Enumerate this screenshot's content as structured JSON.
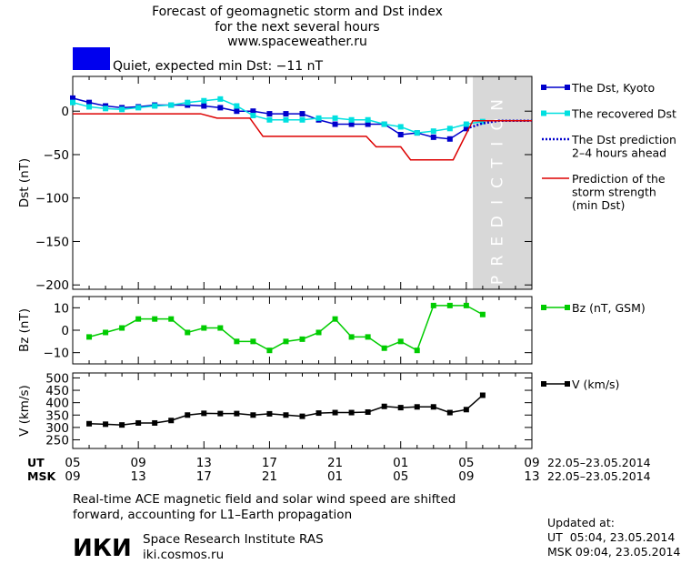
{
  "header": {
    "title_line1": "Forecast of geomagnetic storm and Dst index",
    "title_line2": "for the next several hours",
    "website": "www.spaceweather.ru",
    "status_color": "#0000ee",
    "status_text": "Quiet, expected min Dst: −11 nT"
  },
  "chart_data": [
    {
      "type": "line",
      "ylabel": "Dst (nT)",
      "ylim": [
        -205,
        40
      ],
      "yticks": [
        {
          "v": 0,
          "label": "0"
        },
        {
          "v": -50,
          "label": "−50"
        },
        {
          "v": -100,
          "label": "−100"
        },
        {
          "v": -150,
          "label": "−150"
        },
        {
          "v": -200,
          "label": "−200"
        }
      ],
      "xlim": [
        0,
        28
      ],
      "prediction_band": {
        "x0": 24.4,
        "x1": 28,
        "label": "PREDICTION",
        "color": "#d8d8d8"
      },
      "series": [
        {
          "name": "The Dst, Kyoto",
          "color": "#0000cc",
          "style": "marker-square",
          "x": [
            0,
            1,
            2,
            3,
            4,
            5,
            6,
            7,
            8,
            9,
            10,
            11,
            12,
            13,
            14,
            15,
            16,
            17,
            18,
            19,
            20,
            21,
            22,
            23,
            24
          ],
          "y": [
            15,
            10,
            6,
            4,
            5,
            7,
            7,
            7,
            6,
            4,
            0,
            0,
            -3,
            -3,
            -3,
            -10,
            -15,
            -15,
            -15,
            -15,
            -27,
            -25,
            -30,
            -32,
            -20
          ]
        },
        {
          "name": "The recovered Dst",
          "color": "#00e0e0",
          "style": "marker-square",
          "x": [
            0,
            1,
            2,
            3,
            4,
            5,
            6,
            7,
            8,
            9,
            10,
            11,
            12,
            13,
            14,
            15,
            16,
            17,
            18,
            19,
            20,
            21,
            22,
            23,
            24,
            25
          ],
          "y": [
            10,
            5,
            3,
            2,
            4,
            6,
            7,
            10,
            12,
            14,
            6,
            -5,
            -10,
            -10,
            -10,
            -8,
            -8,
            -10,
            -10,
            -15,
            -18,
            -25,
            -23,
            -20,
            -15,
            -12
          ]
        },
        {
          "name": "The Dst prediction 2–4 hours ahead",
          "color": "#0000cc",
          "style": "dotted",
          "x": [
            24,
            25,
            26,
            28
          ],
          "y": [
            -20,
            -14,
            -11,
            -11
          ]
        },
        {
          "name": "Prediction of the storm strength (min Dst)",
          "color": "#dd0000",
          "style": "step",
          "x": [
            0,
            7.8,
            8.8,
            10.8,
            11.6,
            14.4,
            15.2,
            17.9,
            18.5,
            20,
            20.6,
            23.2,
            24.4,
            28
          ],
          "y": [
            -3,
            -3,
            -8,
            -8,
            -29,
            -29,
            -29,
            -29,
            -41,
            -41,
            -56,
            -56,
            -11,
            -11
          ]
        }
      ],
      "legend": [
        {
          "label_lines": [
            "The Dst, Kyoto"
          ],
          "color": "#0000cc",
          "kind": "marker-line"
        },
        {
          "label_lines": [
            "The recovered Dst"
          ],
          "color": "#00e0e0",
          "kind": "marker-line"
        },
        {
          "label_lines": [
            "The Dst prediction",
            "2–4 hours ahead"
          ],
          "color": "#0000cc",
          "kind": "dotted"
        },
        {
          "label_lines": [
            "Prediction of the",
            "storm strength",
            "(min Dst)"
          ],
          "color": "#dd0000",
          "kind": "line"
        }
      ]
    },
    {
      "type": "line",
      "ylabel": "Bz (nT)",
      "ylim": [
        -15,
        15
      ],
      "yticks": [
        {
          "v": 10,
          "label": "10"
        },
        {
          "v": 0,
          "label": "0"
        },
        {
          "v": -10,
          "label": "−10"
        }
      ],
      "xlim": [
        0,
        28
      ],
      "series": [
        {
          "name": "Bz (nT, GSM)",
          "color": "#00cc00",
          "style": "marker-square",
          "x": [
            1,
            2,
            3,
            4,
            5,
            6,
            7,
            8,
            9,
            10,
            11,
            12,
            13,
            14,
            15,
            16,
            17,
            18,
            19,
            20,
            21,
            22,
            23,
            24,
            25
          ],
          "y": [
            -3,
            -1,
            1,
            5,
            5,
            5,
            -1,
            1,
            1,
            -5,
            -5,
            -9,
            -5,
            -4,
            -1,
            5,
            -3,
            -3,
            -8,
            -5,
            -9,
            11,
            11,
            11,
            7
          ]
        }
      ],
      "legend": [
        {
          "label_lines": [
            "Bz (nT, GSM)"
          ],
          "color": "#00cc00",
          "kind": "marker-line"
        }
      ]
    },
    {
      "type": "line",
      "ylabel": "V (km/s)",
      "ylim": [
        215,
        520
      ],
      "yticks": [
        {
          "v": 500,
          "label": "500"
        },
        {
          "v": 450,
          "label": "450"
        },
        {
          "v": 400,
          "label": "400"
        },
        {
          "v": 350,
          "label": "350"
        },
        {
          "v": 300,
          "label": "300"
        },
        {
          "v": 250,
          "label": "250"
        }
      ],
      "xlim": [
        0,
        28
      ],
      "series": [
        {
          "name": "V (km/s)",
          "color": "#000000",
          "style": "marker-square",
          "x": [
            1,
            2,
            3,
            4,
            5,
            6,
            7,
            8,
            9,
            10,
            11,
            12,
            13,
            14,
            15,
            16,
            17,
            18,
            19,
            20,
            21,
            22,
            23,
            24,
            25
          ],
          "y": [
            315,
            313,
            310,
            318,
            318,
            328,
            350,
            357,
            356,
            356,
            350,
            355,
            350,
            345,
            358,
            360,
            360,
            362,
            385,
            380,
            383,
            383,
            360,
            372,
            430
          ]
        }
      ],
      "legend": [
        {
          "label_lines": [
            "V (km/s)"
          ],
          "color": "#000000",
          "kind": "marker-line"
        }
      ]
    }
  ],
  "time_axis": {
    "ut_label": "UT",
    "msk_label": "MSK",
    "ut_ticks": [
      "05",
      "09",
      "13",
      "17",
      "21",
      "01",
      "05",
      "09"
    ],
    "msk_ticks": [
      "09",
      "13",
      "17",
      "21",
      "01",
      "05",
      "09",
      "13"
    ],
    "ut_date_range": "22.05–23.05.2014",
    "msk_date_range": "22.05–23.05.2014"
  },
  "footer": {
    "note_line1": "Real-time ACE magnetic field and solar wind speed are shifted",
    "note_line2": "forward, accounting for L1–Earth propagation",
    "logo_text": "ИКИ",
    "institute": "Space Research Institute RAS",
    "institute_site": "iki.cosmos.ru",
    "updated_label": "Updated at:",
    "updated_ut": "UT  05:04, 23.05.2014",
    "updated_msk": "MSK 09:04, 23.05.2014"
  }
}
